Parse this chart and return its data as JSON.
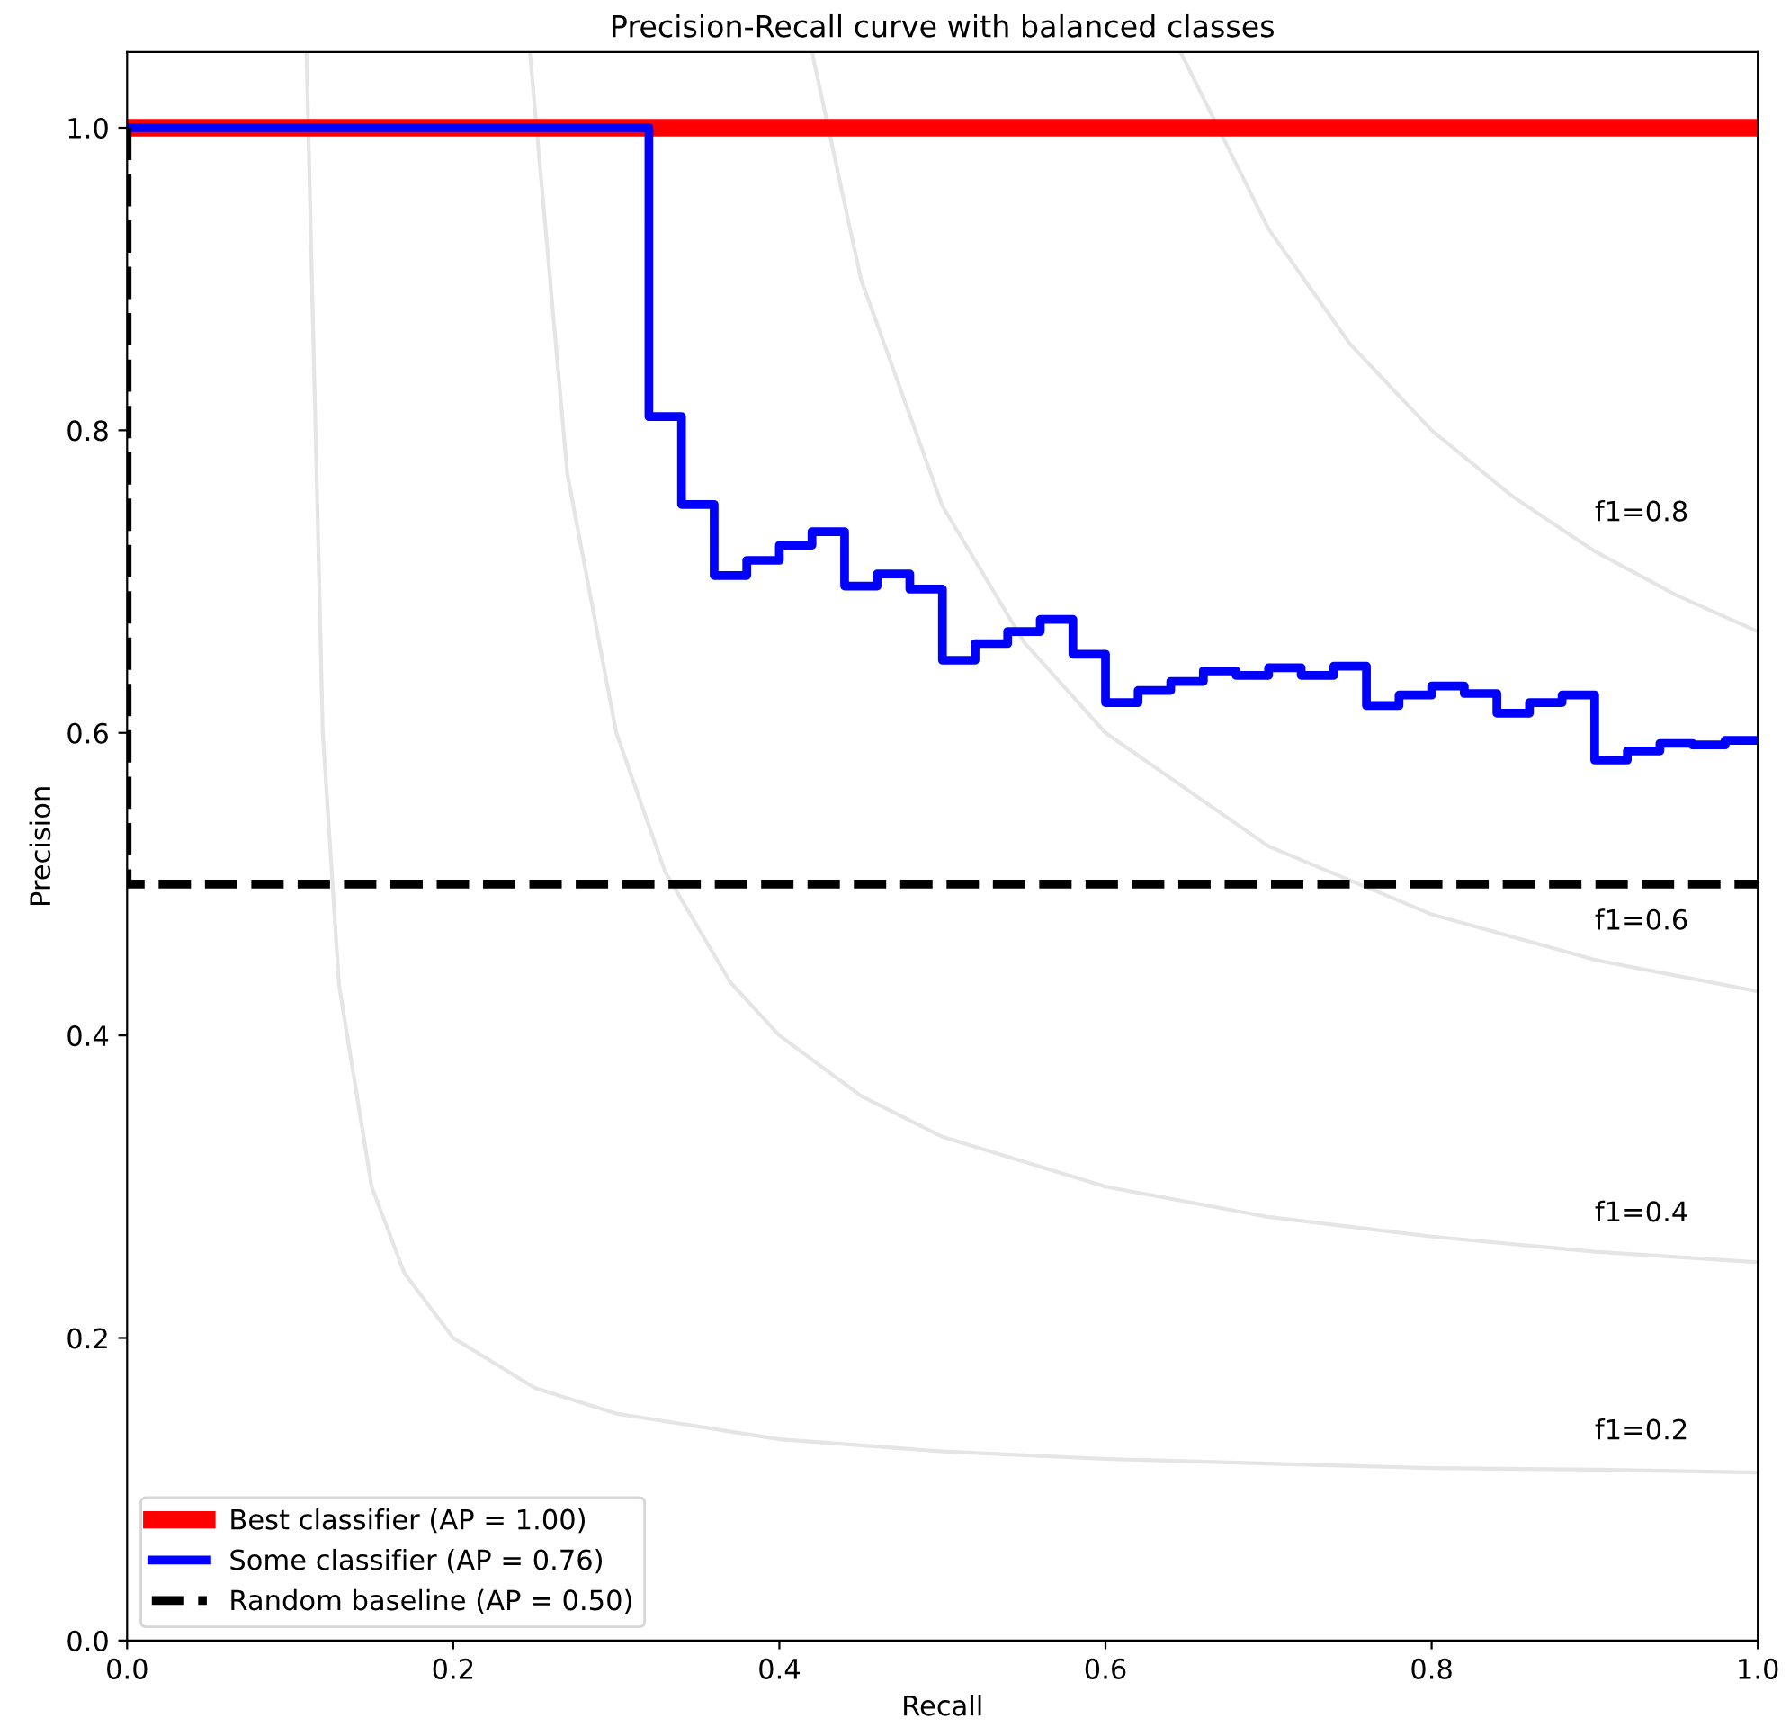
{
  "chart_data": {
    "type": "line",
    "title": "Precision-Recall curve with balanced classes",
    "xlabel": "Recall",
    "ylabel": "Precision",
    "xlim": [
      0,
      1
    ],
    "ylim": [
      0,
      1.05
    ],
    "xticks": [
      {
        "value": 0,
        "label": "0.0"
      },
      {
        "value": 0.2,
        "label": "0.2"
      },
      {
        "value": 0.4,
        "label": "0.4"
      },
      {
        "value": 0.6,
        "label": "0.6"
      },
      {
        "value": 0.8,
        "label": "0.8"
      },
      {
        "value": 1,
        "label": "1.0"
      }
    ],
    "yticks": [
      {
        "value": 0,
        "label": "0.0"
      },
      {
        "value": 0.2,
        "label": "0.2"
      },
      {
        "value": 0.4,
        "label": "0.4"
      },
      {
        "value": 0.6,
        "label": "0.6"
      },
      {
        "value": 0.8,
        "label": "0.8"
      },
      {
        "value": 1,
        "label": "1.0"
      }
    ],
    "grid": false,
    "legend": "bottom left",
    "marker": "none",
    "series": [
      {
        "color": "#e5e5e5",
        "x": [
          0.11,
          0.12,
          0.13,
          0.15,
          0.17,
          0.2,
          0.25,
          0.3,
          0.4,
          0.5,
          0.6,
          0.7,
          0.8,
          0.9,
          1.0
        ],
        "values": [
          1.05,
          0.6,
          0.433,
          0.3,
          0.243,
          0.2,
          0.167,
          0.15,
          0.133,
          0.125,
          0.12,
          0.117,
          0.114,
          0.113,
          0.111
        ]
      },
      {
        "color": "#e5e5e5",
        "x": [
          0.247,
          0.27,
          0.3,
          0.33,
          0.37,
          0.4,
          0.45,
          0.5,
          0.6,
          0.7,
          0.8,
          0.9,
          1.0
        ],
        "values": [
          1.05,
          0.771,
          0.6,
          0.508,
          0.435,
          0.4,
          0.36,
          0.333,
          0.3,
          0.28,
          0.267,
          0.257,
          0.25
        ]
      },
      {
        "color": "#e5e5e5",
        "x": [
          0.42,
          0.45,
          0.5,
          0.55,
          0.6,
          0.7,
          0.8,
          0.9,
          1.0
        ],
        "values": [
          1.05,
          0.9,
          0.75,
          0.66,
          0.6,
          0.525,
          0.48,
          0.45,
          0.429
        ]
      },
      {
        "color": "#e5e5e5",
        "x": [
          0.646,
          0.7,
          0.75,
          0.8,
          0.85,
          0.9,
          0.95,
          1.0
        ],
        "values": [
          1.05,
          0.933,
          0.857,
          0.8,
          0.756,
          0.72,
          0.691,
          0.667
        ]
      },
      {
        "name": "Best classifier (AP = 1.00)",
        "color": "#ff0000",
        "x": [
          0,
          1
        ],
        "values": [
          1,
          1
        ]
      },
      {
        "type": "step",
        "name": "Some classifier (AP = 0.76)",
        "color": "#0000ff",
        "x": [
          0,
          0.32,
          0.34,
          0.36,
          0.38,
          0.4,
          0.42,
          0.44,
          0.46,
          0.48,
          0.5,
          0.52,
          0.54,
          0.56,
          0.58,
          0.6,
          0.62,
          0.64,
          0.66,
          0.68,
          0.7,
          0.72,
          0.74,
          0.76,
          0.78,
          0.8,
          0.82,
          0.84,
          0.86,
          0.88,
          0.9,
          0.92,
          0.94,
          0.96,
          0.98,
          1.0
        ],
        "values": [
          1.0,
          0.809,
          0.751,
          0.704,
          0.714,
          0.724,
          0.733,
          0.697,
          0.705,
          0.695,
          0.648,
          0.659,
          0.667,
          0.675,
          0.652,
          0.62,
          0.628,
          0.634,
          0.641,
          0.638,
          0.643,
          0.638,
          0.644,
          0.618,
          0.625,
          0.631,
          0.626,
          0.613,
          0.62,
          0.625,
          0.582,
          0.588,
          0.593,
          0.592,
          0.595,
          0.595
        ]
      },
      {
        "name": "Random baseline (AP = 0.50)",
        "color": "#000000",
        "line_style": "dashed",
        "x": [
          0,
          0,
          1
        ],
        "values": [
          1,
          0.5,
          0.5
        ]
      }
    ],
    "annotations": [
      "f1=0.2",
      "f1=0.4",
      "f1=0.6",
      "f1=0.8"
    ]
  }
}
